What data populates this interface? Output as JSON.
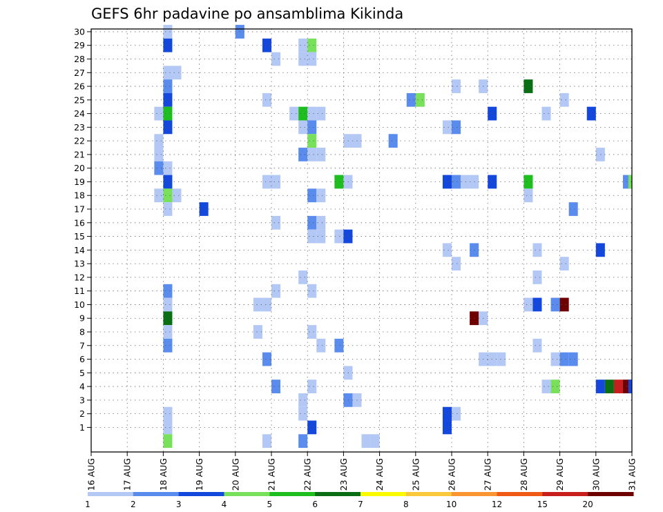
{
  "chart_data": {
    "type": "heatmap",
    "title": "GEFS 6hr padavine po ansamblima Kikinda",
    "y_ticks": [
      1,
      2,
      3,
      4,
      5,
      6,
      7,
      8,
      9,
      10,
      11,
      12,
      13,
      14,
      15,
      16,
      17,
      18,
      19,
      20,
      21,
      22,
      23,
      24,
      25,
      26,
      27,
      28,
      29,
      30
    ],
    "x_ticks": [
      "16 AUG",
      "17 AUG",
      "18 AUG",
      "19 AUG",
      "20 AUG",
      "21 AUG",
      "22 AUG",
      "23 AUG",
      "24 AUG",
      "25 AUG",
      "26 AUG",
      "27 AUG",
      "28 AUG",
      "29 AUG",
      "30 AUG",
      "31 AUG"
    ],
    "x_range": [
      0,
      60
    ],
    "y_range": [
      0,
      30
    ],
    "grid": true,
    "legend": {
      "placement": "bottom",
      "labels": [
        "1",
        "2",
        "3",
        "4",
        "5",
        "6",
        "7",
        "8",
        "10",
        "12",
        "15",
        "20"
      ],
      "colors": [
        "#b4c8f5",
        "#5a8cee",
        "#1448dc",
        "#78e05a",
        "#1ebe1e",
        "#0a6e14",
        "#fafa00",
        "#fac83c",
        "#fa9632",
        "#f05a14",
        "#c81e1e",
        "#6e0000"
      ]
    },
    "cells": [
      [
        8,
        30,
        "#b4c8f5"
      ],
      [
        16,
        30,
        "#5a8cee"
      ],
      [
        8,
        29,
        "#1448dc"
      ],
      [
        19,
        29,
        "#1448dc"
      ],
      [
        23,
        29,
        "#b4c8f5"
      ],
      [
        24,
        29,
        "#78e05a"
      ],
      [
        20,
        28,
        "#b4c8f5"
      ],
      [
        23,
        28,
        "#b4c8f5"
      ],
      [
        24,
        28,
        "#b4c8f5"
      ],
      [
        8,
        27,
        "#b4c8f5"
      ],
      [
        9,
        27,
        "#b4c8f5"
      ],
      [
        8,
        26,
        "#5a8cee"
      ],
      [
        40,
        26,
        "#b4c8f5"
      ],
      [
        43,
        26,
        "#b4c8f5"
      ],
      [
        48,
        26,
        "#0a6e14"
      ],
      [
        8,
        25,
        "#1448dc"
      ],
      [
        19,
        25,
        "#b4c8f5"
      ],
      [
        35,
        25,
        "#5a8cee"
      ],
      [
        36,
        25,
        "#78e05a"
      ],
      [
        52,
        25,
        "#b4c8f5"
      ],
      [
        7,
        24,
        "#b4c8f5"
      ],
      [
        8,
        24,
        "#1ebe1e"
      ],
      [
        22,
        24,
        "#b4c8f5"
      ],
      [
        23,
        24,
        "#1ebe1e"
      ],
      [
        24,
        24,
        "#b4c8f5"
      ],
      [
        25,
        24,
        "#b4c8f5"
      ],
      [
        44,
        24,
        "#1448dc"
      ],
      [
        50,
        24,
        "#b4c8f5"
      ],
      [
        55,
        24,
        "#1448dc"
      ],
      [
        8,
        23,
        "#1448dc"
      ],
      [
        23,
        23,
        "#b4c8f5"
      ],
      [
        24,
        23,
        "#5a8cee"
      ],
      [
        39,
        23,
        "#b4c8f5"
      ],
      [
        40,
        23,
        "#5a8cee"
      ],
      [
        7,
        22,
        "#b4c8f5"
      ],
      [
        24,
        22,
        "#78e05a"
      ],
      [
        28,
        22,
        "#b4c8f5"
      ],
      [
        29,
        22,
        "#b4c8f5"
      ],
      [
        33,
        22,
        "#5a8cee"
      ],
      [
        7,
        21,
        "#b4c8f5"
      ],
      [
        23,
        21,
        "#5a8cee"
      ],
      [
        24,
        21,
        "#b4c8f5"
      ],
      [
        25,
        21,
        "#b4c8f5"
      ],
      [
        56,
        21,
        "#b4c8f5"
      ],
      [
        7,
        20,
        "#5a8cee"
      ],
      [
        8,
        20,
        "#b4c8f5"
      ],
      [
        8,
        19,
        "#1448dc"
      ],
      [
        19,
        19,
        "#b4c8f5"
      ],
      [
        20,
        19,
        "#b4c8f5"
      ],
      [
        27,
        19,
        "#1ebe1e"
      ],
      [
        28,
        19,
        "#b4c8f5"
      ],
      [
        39,
        19,
        "#1448dc"
      ],
      [
        40,
        19,
        "#5a8cee"
      ],
      [
        41,
        19,
        "#b4c8f5"
      ],
      [
        42,
        19,
        "#b4c8f5"
      ],
      [
        44,
        19,
        "#1448dc"
      ],
      [
        48,
        19,
        "#1ebe1e"
      ],
      [
        59,
        19,
        "#5a8cee"
      ],
      [
        59.6,
        19,
        "#78e05a"
      ],
      [
        7,
        18,
        "#b4c8f5"
      ],
      [
        8,
        18,
        "#78e05a"
      ],
      [
        9,
        18,
        "#b4c8f5"
      ],
      [
        24,
        18,
        "#5a8cee"
      ],
      [
        25,
        18,
        "#b4c8f5"
      ],
      [
        48,
        18,
        "#b4c8f5"
      ],
      [
        8,
        17,
        "#b4c8f5"
      ],
      [
        12,
        17,
        "#1448dc"
      ],
      [
        53,
        17,
        "#5a8cee"
      ],
      [
        20,
        16,
        "#b4c8f5"
      ],
      [
        24,
        16,
        "#5a8cee"
      ],
      [
        25,
        16,
        "#b4c8f5"
      ],
      [
        24,
        15,
        "#b4c8f5"
      ],
      [
        25,
        15,
        "#b4c8f5"
      ],
      [
        27,
        15,
        "#b4c8f5"
      ],
      [
        28,
        15,
        "#1448dc"
      ],
      [
        39,
        14,
        "#b4c8f5"
      ],
      [
        42,
        14,
        "#5a8cee"
      ],
      [
        49,
        14,
        "#b4c8f5"
      ],
      [
        56,
        14,
        "#1448dc"
      ],
      [
        40,
        13,
        "#b4c8f5"
      ],
      [
        52,
        13,
        "#b4c8f5"
      ],
      [
        23,
        12,
        "#b4c8f5"
      ],
      [
        49,
        12,
        "#b4c8f5"
      ],
      [
        8,
        11,
        "#5a8cee"
      ],
      [
        20,
        11,
        "#b4c8f5"
      ],
      [
        24,
        11,
        "#b4c8f5"
      ],
      [
        8,
        10,
        "#b4c8f5"
      ],
      [
        18,
        10,
        "#b4c8f5"
      ],
      [
        19,
        10,
        "#b4c8f5"
      ],
      [
        48,
        10,
        "#b4c8f5"
      ],
      [
        49,
        10,
        "#1448dc"
      ],
      [
        51,
        10,
        "#5a8cee"
      ],
      [
        52,
        10,
        "#6e0000"
      ],
      [
        8,
        9,
        "#0a6e14"
      ],
      [
        42,
        9,
        "#6e0000"
      ],
      [
        43,
        9,
        "#b4c8f5"
      ],
      [
        8,
        8,
        "#b4c8f5"
      ],
      [
        18,
        8,
        "#b4c8f5"
      ],
      [
        24,
        8,
        "#b4c8f5"
      ],
      [
        8,
        7,
        "#5a8cee"
      ],
      [
        25,
        7,
        "#b4c8f5"
      ],
      [
        27,
        7,
        "#5a8cee"
      ],
      [
        49,
        7,
        "#b4c8f5"
      ],
      [
        19,
        6,
        "#5a8cee"
      ],
      [
        43,
        6,
        "#b4c8f5"
      ],
      [
        44,
        6,
        "#b4c8f5"
      ],
      [
        45,
        6,
        "#b4c8f5"
      ],
      [
        51,
        6,
        "#b4c8f5"
      ],
      [
        52,
        6,
        "#5a8cee"
      ],
      [
        53,
        6,
        "#5a8cee"
      ],
      [
        28,
        5,
        "#b4c8f5"
      ],
      [
        20,
        4,
        "#5a8cee"
      ],
      [
        24,
        4,
        "#b4c8f5"
      ],
      [
        50,
        4,
        "#b4c8f5"
      ],
      [
        51,
        4,
        "#78e05a"
      ],
      [
        56,
        4,
        "#1448dc"
      ],
      [
        57,
        4,
        "#0a6e14"
      ],
      [
        58,
        4,
        "#c81e1e"
      ],
      [
        59,
        4,
        "#6e0000"
      ],
      [
        59.6,
        4,
        "#1448dc"
      ],
      [
        23,
        3,
        "#b4c8f5"
      ],
      [
        28,
        3,
        "#5a8cee"
      ],
      [
        29,
        3,
        "#b4c8f5"
      ],
      [
        8,
        2,
        "#b4c8f5"
      ],
      [
        23,
        2,
        "#b4c8f5"
      ],
      [
        39,
        2,
        "#1448dc"
      ],
      [
        40,
        2,
        "#b4c8f5"
      ],
      [
        8,
        1,
        "#b4c8f5"
      ],
      [
        24,
        1,
        "#1448dc"
      ],
      [
        39,
        1,
        "#1448dc"
      ],
      [
        8,
        0,
        "#78e05a"
      ],
      [
        19,
        0,
        "#b4c8f5"
      ],
      [
        23,
        0,
        "#5a8cee"
      ],
      [
        30,
        0,
        "#b4c8f5"
      ],
      [
        31,
        0,
        "#b4c8f5"
      ]
    ]
  }
}
